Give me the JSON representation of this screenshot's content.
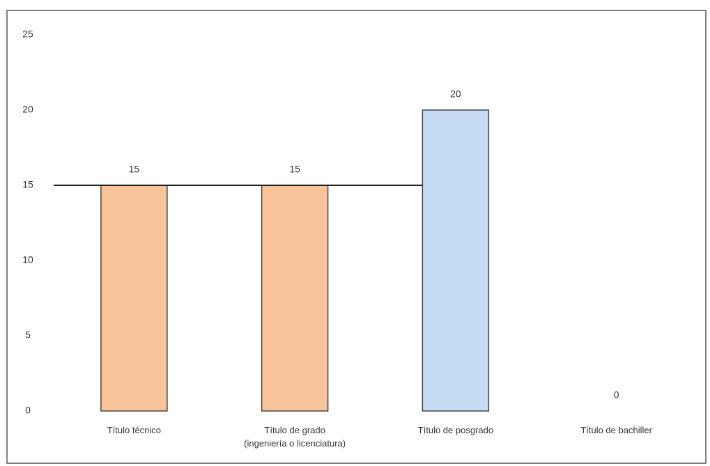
{
  "chart_data": {
    "type": "bar",
    "categories": [
      "Título técnico",
      "Título de grado\n(ingeniería o licenciatura)",
      "Título de posgrado",
      "Título de bachiller"
    ],
    "values": [
      15,
      15,
      20,
      0
    ],
    "colors": [
      "#f9c49a",
      "#f9c49a",
      "#c6dcf4",
      "#c6dcf4"
    ],
    "ylim": [
      0,
      25
    ],
    "yticks": [
      0,
      5,
      10,
      15,
      20,
      25
    ],
    "grid": false,
    "reference_line": 15
  }
}
